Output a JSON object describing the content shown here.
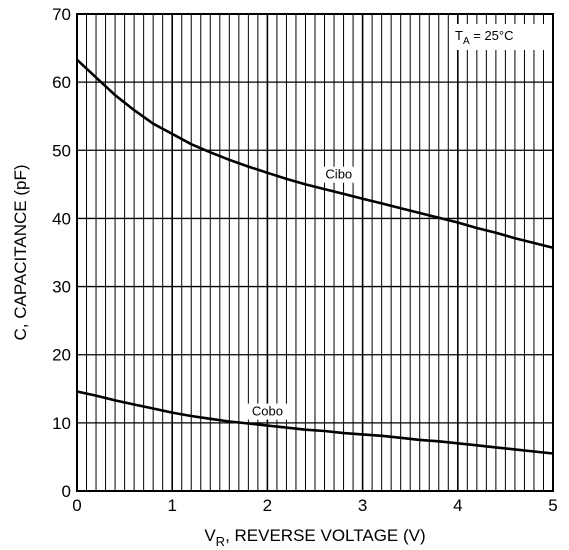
{
  "chart_data": {
    "type": "line",
    "title": "",
    "xlabel": {
      "main": "V",
      "sub": "R",
      "rest": ", REVERSE VOLTAGE (V)"
    },
    "ylabel": "C, CAPACITANCE (pF)",
    "xlim": [
      0,
      5
    ],
    "ylim": [
      0,
      70
    ],
    "x_major_ticks": [
      "0",
      "1",
      "2",
      "3",
      "4",
      "5"
    ],
    "y_major_ticks": [
      "0",
      "10",
      "20",
      "30",
      "40",
      "50",
      "60",
      "70"
    ],
    "x_minor_step": 0.1,
    "y_grid_step": 10,
    "grid": true,
    "annotation_temp": {
      "main": "T",
      "sub": "A",
      "rest": " = 25°C"
    },
    "series": [
      {
        "name": "Cibo",
        "x": [
          0,
          0.2,
          0.4,
          0.6,
          0.8,
          1.0,
          1.2,
          1.4,
          1.6,
          1.8,
          2.0,
          2.2,
          2.4,
          2.6,
          2.8,
          3.0,
          3.2,
          3.4,
          3.6,
          3.8,
          4.0,
          4.2,
          4.4,
          4.6,
          4.8,
          5.0
        ],
        "y": [
          63.3,
          60.7,
          58.1,
          55.9,
          53.9,
          52.4,
          50.9,
          49.7,
          48.6,
          47.6,
          46.7,
          45.8,
          45.0,
          44.3,
          43.6,
          42.9,
          42.2,
          41.5,
          40.8,
          40.1,
          39.4,
          38.6,
          37.9,
          37.1,
          36.4,
          35.7
        ]
      },
      {
        "name": "Cobo",
        "x": [
          0,
          0.2,
          0.4,
          0.6,
          0.8,
          1.0,
          1.2,
          1.4,
          1.6,
          1.8,
          2.0,
          2.2,
          2.4,
          2.6,
          2.8,
          3.0,
          3.2,
          3.4,
          3.6,
          3.8,
          4.0,
          4.2,
          4.4,
          4.6,
          4.8,
          5.0
        ],
        "y": [
          14.6,
          14.0,
          13.3,
          12.7,
          12.1,
          11.5,
          11.0,
          10.6,
          10.2,
          9.9,
          9.6,
          9.3,
          9.0,
          8.8,
          8.5,
          8.3,
          8.1,
          7.8,
          7.5,
          7.3,
          7.0,
          6.7,
          6.4,
          6.1,
          5.8,
          5.5
        ]
      }
    ]
  }
}
